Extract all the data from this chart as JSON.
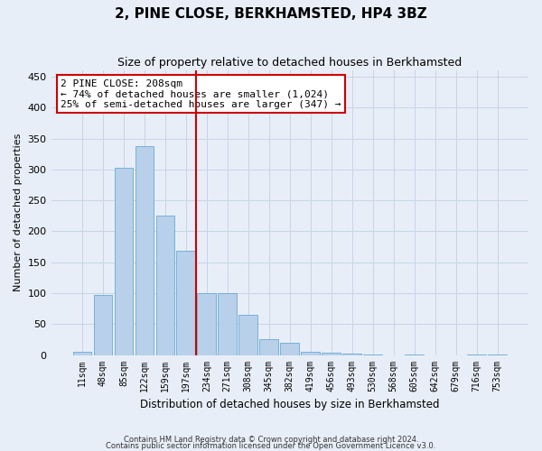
{
  "title": "2, PINE CLOSE, BERKHAMSTED, HP4 3BZ",
  "subtitle": "Size of property relative to detached houses in Berkhamsted",
  "xlabel": "Distribution of detached houses by size in Berkhamsted",
  "ylabel": "Number of detached properties",
  "bar_labels": [
    "11sqm",
    "48sqm",
    "85sqm",
    "122sqm",
    "159sqm",
    "197sqm",
    "234sqm",
    "271sqm",
    "308sqm",
    "345sqm",
    "382sqm",
    "419sqm",
    "456sqm",
    "493sqm",
    "530sqm",
    "568sqm",
    "605sqm",
    "642sqm",
    "679sqm",
    "716sqm",
    "753sqm"
  ],
  "bar_values": [
    5,
    97,
    303,
    338,
    225,
    168,
    100,
    100,
    65,
    25,
    20,
    5,
    3,
    2,
    1,
    0,
    1,
    0,
    0,
    1,
    1
  ],
  "bar_color": "#b8d0ea",
  "bar_edge_color": "#6aaad4",
  "vline_color": "#cc0000",
  "annotation_text": "2 PINE CLOSE: 208sqm\n← 74% of detached houses are smaller (1,024)\n25% of semi-detached houses are larger (347) →",
  "annotation_box_color": "#ffffff",
  "annotation_box_edge": "#cc0000",
  "ylim": [
    0,
    460
  ],
  "yticks": [
    0,
    50,
    100,
    150,
    200,
    250,
    300,
    350,
    400,
    450
  ],
  "grid_color": "#c8d4e8",
  "footer1": "Contains HM Land Registry data © Crown copyright and database right 2024.",
  "footer2": "Contains public sector information licensed under the Open Government Licence v3.0.",
  "bg_color": "#e8eef8",
  "plot_bg_color": "#e8eef8",
  "title_fontsize": 11,
  "subtitle_fontsize": 9
}
